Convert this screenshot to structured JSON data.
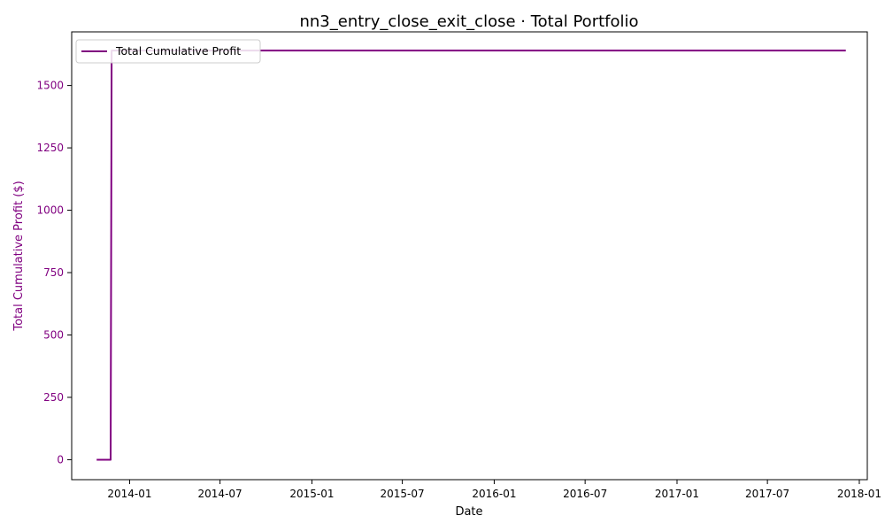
{
  "chart_data": {
    "type": "line",
    "title": "nn3_entry_close_exit_close · Total Portfolio",
    "xlabel": "Date",
    "ylabel": "Total Cumulative Profit ($)",
    "x_type": "date",
    "xlim": [
      "2013-09-07",
      "2018-01-17"
    ],
    "ylim": [
      -80,
      1715
    ],
    "x_ticks": [
      "2014-01-01",
      "2014-07-01",
      "2015-01-01",
      "2015-07-01",
      "2016-01-01",
      "2016-07-01",
      "2017-01-01",
      "2017-07-01",
      "2018-01-01"
    ],
    "x_tick_labels": [
      "2014-01",
      "2014-07",
      "2015-01",
      "2015-07",
      "2016-01",
      "2016-07",
      "2017-01",
      "2017-07",
      "2018-01"
    ],
    "y_ticks": [
      0,
      250,
      500,
      750,
      1000,
      1250,
      1500
    ],
    "y_tick_labels": [
      "0",
      "250",
      "500",
      "750",
      "1000",
      "1250",
      "1500"
    ],
    "grid": false,
    "legend": "upper-left",
    "series": [
      {
        "name": "Total Cumulative Profit",
        "color": "#800080",
        "x": [
          "2013-10-27",
          "2013-11-24",
          "2013-11-26",
          "2017-12-05"
        ],
        "y": [
          0,
          0,
          1640,
          1640
        ]
      }
    ]
  },
  "colors": {
    "axis_accent": "#800080",
    "axes": "#000000"
  }
}
